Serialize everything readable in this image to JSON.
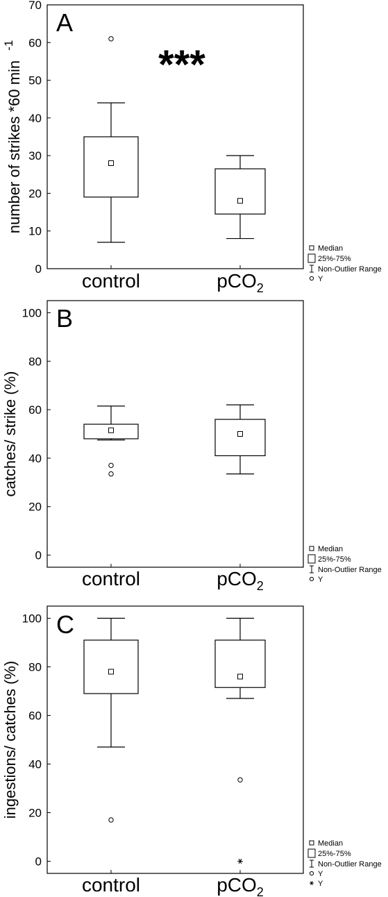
{
  "chart_data": [
    {
      "type": "box",
      "panel_label": "A",
      "ylabel": "number of strikes *60 min",
      "ylabel_superscript": "-1",
      "ylim": [
        0,
        70
      ],
      "yticks": [
        0,
        10,
        20,
        30,
        40,
        50,
        60,
        70
      ],
      "significance": "***",
      "categories": [
        {
          "label": "control",
          "subscript": ""
        },
        {
          "label": "pCO",
          "subscript": "2"
        }
      ],
      "boxes": [
        {
          "median": 28,
          "q1": 19,
          "q3": 35,
          "whisker_low": 7,
          "whisker_high": 44,
          "outliers": [
            61
          ],
          "extremes": []
        },
        {
          "median": 18,
          "q1": 14.5,
          "q3": 26.5,
          "whisker_low": 8,
          "whisker_high": 30,
          "outliers": [],
          "extremes": []
        }
      ],
      "legend": [
        {
          "symbol": "median",
          "text": "Median"
        },
        {
          "symbol": "box",
          "text": "25%-75%"
        },
        {
          "symbol": "whisker",
          "text": "Non-Outlier Range"
        },
        {
          "symbol": "circle",
          "text": "Y"
        }
      ]
    },
    {
      "type": "box",
      "panel_label": "B",
      "ylabel": "catches/ strike (%)",
      "ylabel_superscript": "",
      "ylim": [
        -5,
        105
      ],
      "yticks": [
        0,
        20,
        40,
        60,
        80,
        100
      ],
      "significance": "",
      "categories": [
        {
          "label": "control",
          "subscript": ""
        },
        {
          "label": "pCO",
          "subscript": "2"
        }
      ],
      "boxes": [
        {
          "median": 51.5,
          "q1": 48,
          "q3": 54,
          "whisker_low": 47.5,
          "whisker_high": 61.5,
          "outliers": [
            37,
            33.5
          ],
          "extremes": []
        },
        {
          "median": 50,
          "q1": 41,
          "q3": 56,
          "whisker_low": 33.5,
          "whisker_high": 62,
          "outliers": [],
          "extremes": []
        }
      ],
      "legend": [
        {
          "symbol": "median",
          "text": "Median"
        },
        {
          "symbol": "box",
          "text": "25%-75%"
        },
        {
          "symbol": "whisker",
          "text": "Non-Outlier Range"
        },
        {
          "symbol": "circle",
          "text": "Y"
        }
      ]
    },
    {
      "type": "box",
      "panel_label": "C",
      "ylabel": "ingestions/ catches (%)",
      "ylabel_superscript": "",
      "ylim": [
        -5,
        105
      ],
      "yticks": [
        0,
        20,
        40,
        60,
        80,
        100
      ],
      "significance": "",
      "categories": [
        {
          "label": "control",
          "subscript": ""
        },
        {
          "label": "pCO",
          "subscript": "2"
        }
      ],
      "boxes": [
        {
          "median": 78,
          "q1": 69,
          "q3": 91,
          "whisker_low": 47,
          "whisker_high": 100,
          "outliers": [
            17
          ],
          "extremes": []
        },
        {
          "median": 76,
          "q1": 71.5,
          "q3": 91,
          "whisker_low": 67,
          "whisker_high": 100,
          "outliers": [
            33.5
          ],
          "extremes": [
            0
          ]
        }
      ],
      "legend": [
        {
          "symbol": "median",
          "text": "Median"
        },
        {
          "symbol": "box",
          "text": "25%-75%"
        },
        {
          "symbol": "whisker",
          "text": "Non-Outlier Range"
        },
        {
          "symbol": "circle",
          "text": "Y"
        },
        {
          "symbol": "star",
          "text": "Y"
        }
      ]
    }
  ]
}
